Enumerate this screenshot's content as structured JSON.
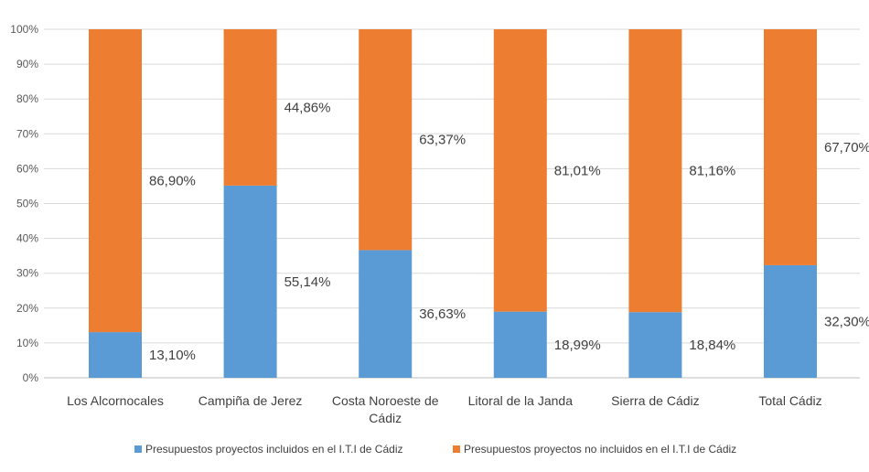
{
  "chart_data": {
    "type": "bar",
    "stacked": true,
    "stack_mode": "percent",
    "categories": [
      [
        "Los Alcornocales"
      ],
      [
        "Campiña de Jerez"
      ],
      [
        "Costa Noroeste de",
        "Cádiz"
      ],
      [
        "Litoral de la Janda"
      ],
      [
        "Sierra de Cádiz"
      ],
      [
        "Total Cádiz"
      ]
    ],
    "series": [
      {
        "name": "Presupuestos proyectos incluidos en el I.T.I de Cádiz",
        "color": "#5B9BD5",
        "values": [
          13.1,
          55.14,
          36.63,
          18.99,
          18.84,
          32.3
        ],
        "labels": [
          "13,10%",
          "55,14%",
          "36,63%",
          "18,99%",
          "18,84%",
          "32,30%"
        ]
      },
      {
        "name": "Presupuestos proyectos no incluidos en el I.T.I de Cádiz",
        "color": "#ED7D31",
        "values": [
          86.9,
          44.86,
          63.37,
          81.01,
          81.16,
          67.7
        ],
        "labels": [
          "86,90%",
          "44,86%",
          "63,37%",
          "81,01%",
          "81,16%",
          "67,70%"
        ]
      }
    ],
    "y_ticks": [
      "0%",
      "10%",
      "20%",
      "30%",
      "40%",
      "50%",
      "60%",
      "70%",
      "80%",
      "90%",
      "100%"
    ],
    "ylim": [
      0,
      100
    ],
    "grid": true,
    "legend_position": "bottom"
  }
}
